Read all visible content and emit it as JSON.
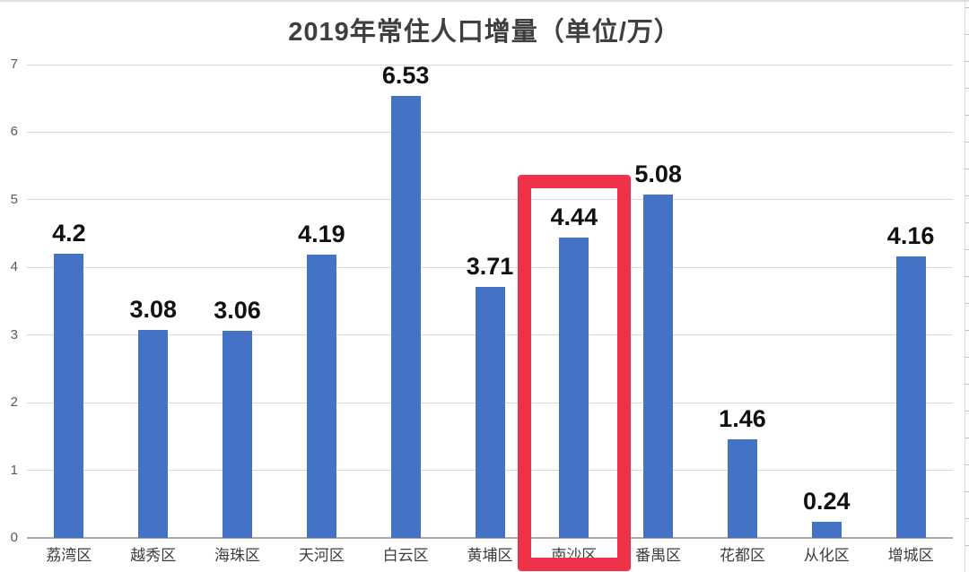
{
  "chart_data": {
    "type": "bar",
    "title": "2019年常住人口增量（单位/万）",
    "categories": [
      "荔湾区",
      "越秀区",
      "海珠区",
      "天河区",
      "白云区",
      "黄埔区",
      "南沙区",
      "番禺区",
      "花都区",
      "从化区",
      "增城区"
    ],
    "values": [
      4.2,
      3.08,
      3.06,
      4.19,
      6.53,
      3.71,
      4.44,
      5.08,
      1.46,
      0.24,
      4.16
    ],
    "data_labels": [
      "4.2",
      "3.08",
      "3.06",
      "4.19",
      "6.53",
      "3.71",
      "4.44",
      "5.08",
      "1.46",
      "0.24",
      "4.16"
    ],
    "xlabel": "",
    "ylabel": "",
    "ylim": [
      0,
      7
    ],
    "yticks": [
      0,
      1,
      2,
      3,
      4,
      5,
      6,
      7
    ],
    "grid": true,
    "legend": false,
    "bar_color": "#4472C4",
    "title_color": "#3f3f3f",
    "data_label_color": "#111111",
    "category_label_color": "#3d3d3d",
    "ytick_color": "#595959",
    "gridline_color": "#d9d9d9",
    "axis_line_color": "#ababab",
    "highlight": {
      "category": "南沙区",
      "box_color": "#EF3149"
    }
  }
}
